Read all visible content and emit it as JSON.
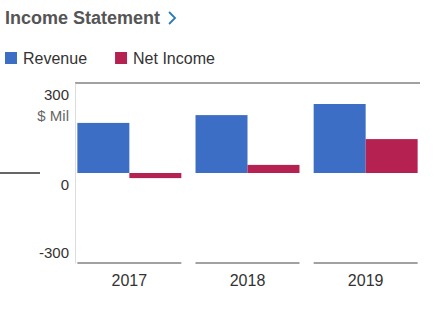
{
  "chart_data": {
    "type": "bar",
    "title": "Income Statement",
    "y_label": "$ Mil",
    "categories": [
      "2017",
      "2018",
      "2019"
    ],
    "series": [
      {
        "name": "Revenue",
        "color": "#3d6ec6",
        "values": [
          167,
          193,
          230
        ]
      },
      {
        "name": "Net Income",
        "color": "#b52150",
        "values": [
          -17,
          27,
          113
        ]
      }
    ],
    "ylim": [
      -300,
      300
    ],
    "yticks": [
      -300,
      0,
      300
    ],
    "legend": "top-left"
  }
}
